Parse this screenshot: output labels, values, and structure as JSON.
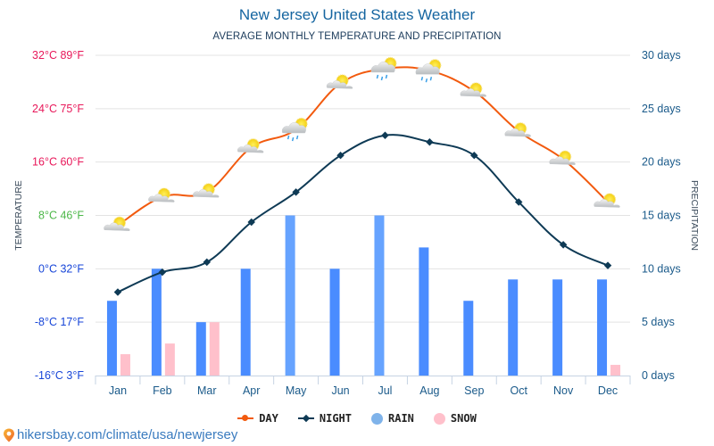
{
  "chart_data": {
    "type": "line+bar",
    "title": "New Jersey United States Weather",
    "subtitle": "AVERAGE MONTHLY TEMPERATURE AND PRECIPITATION",
    "ylabel_left": "TEMPERATURE",
    "ylabel_right": "PRECIPITATION",
    "categories": [
      "Jan",
      "Feb",
      "Mar",
      "Apr",
      "May",
      "Jun",
      "Jul",
      "Aug",
      "Sep",
      "Oct",
      "Nov",
      "Dec"
    ],
    "left_axis": {
      "unit": "°C",
      "range": [
        -16,
        32
      ],
      "ticks": [
        {
          "value": 32,
          "label": "32°C 89°F",
          "color": "#e8185a"
        },
        {
          "value": 24,
          "label": "24°C 75°F",
          "color": "#e8185a"
        },
        {
          "value": 16,
          "label": "16°C 60°F",
          "color": "#e8185a"
        },
        {
          "value": 8,
          "label": "8°C 46°F",
          "color": "#4cb748"
        },
        {
          "value": 0,
          "label": "0°C 32°F",
          "color": "#1846d8"
        },
        {
          "value": -8,
          "label": "-8°C 17°F",
          "color": "#1846d8"
        },
        {
          "value": -16,
          "label": "-16°C 3°F",
          "color": "#1846d8"
        }
      ]
    },
    "right_axis": {
      "unit": "days",
      "range": [
        0,
        30
      ],
      "ticks": [
        {
          "value": 30,
          "label": "30 days"
        },
        {
          "value": 25,
          "label": "25 days"
        },
        {
          "value": 20,
          "label": "20 days"
        },
        {
          "value": 15,
          "label": "15 days"
        },
        {
          "value": 10,
          "label": "10 days"
        },
        {
          "value": 5,
          "label": "5 days"
        },
        {
          "value": 0,
          "label": "0 days"
        }
      ]
    },
    "series": [
      {
        "name": "DAY",
        "type": "line",
        "axis": "left",
        "color": "#f25a0e",
        "marker": "circle",
        "values": [
          6.5,
          10.8,
          11.5,
          18.2,
          20.9,
          27.8,
          30.0,
          29.7,
          26.6,
          20.6,
          16.4,
          10.0
        ],
        "icons": [
          "partly-cloudy",
          "partly-cloudy",
          "partly-cloudy",
          "partly-cloudy",
          "rain-sun",
          "partly-cloudy",
          "rain-sun",
          "rain-sun",
          "partly-cloudy",
          "partly-cloudy",
          "partly-cloudy",
          "partly-cloudy"
        ]
      },
      {
        "name": "NIGHT",
        "type": "line",
        "axis": "left",
        "color": "#0e3a55",
        "marker": "diamond",
        "values": [
          -3.5,
          -0.5,
          1.0,
          7.0,
          11.5,
          17.0,
          20.0,
          19.0,
          17.0,
          10.0,
          3.6,
          0.5
        ]
      },
      {
        "name": "RAIN",
        "type": "bar",
        "axis": "right",
        "color": "#4a8cff",
        "color_alt": "#66a3ff",
        "values": [
          7,
          10,
          5,
          10,
          15,
          10,
          15,
          12,
          7,
          9,
          9,
          9
        ]
      },
      {
        "name": "SNOW",
        "type": "bar",
        "axis": "right",
        "color": "#ffc0cb",
        "values": [
          2,
          3,
          5,
          0,
          0,
          0,
          0,
          0,
          0,
          0,
          0,
          1
        ]
      }
    ],
    "grid": true,
    "legend": "bottom-center"
  },
  "legend": {
    "items": [
      {
        "label": "DAY",
        "color": "#f25a0e"
      },
      {
        "label": "NIGHT",
        "color": "#0e3a55"
      },
      {
        "label": "RAIN",
        "color": "#7fb3ea"
      },
      {
        "label": "SNOW",
        "color": "#ffc0cb"
      }
    ]
  },
  "footer": {
    "url_text": "hikersbay.com/climate/usa/newjersey"
  }
}
